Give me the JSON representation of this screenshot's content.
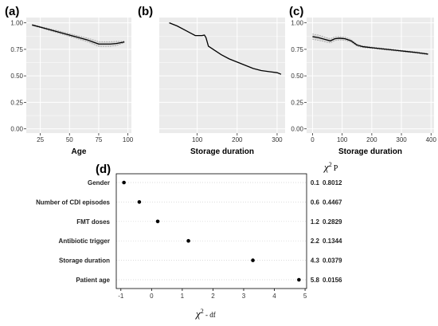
{
  "chart_data": [
    {
      "panel": "(a)",
      "type": "line",
      "xlabel": "Age",
      "ylabel": "",
      "xticks": [
        25,
        50,
        75,
        100
      ],
      "yticks": [
        "0.00",
        "0.25",
        "0.50",
        "0.75",
        "1.00"
      ],
      "xlim": [
        13,
        103
      ],
      "ylim": [
        -0.04,
        1.05
      ],
      "grid": true,
      "x": [
        18,
        25,
        30,
        35,
        40,
        45,
        50,
        55,
        60,
        65,
        70,
        75,
        80,
        85,
        90,
        95,
        97
      ],
      "y": [
        0.98,
        0.96,
        0.945,
        0.93,
        0.915,
        0.9,
        0.885,
        0.87,
        0.855,
        0.84,
        0.82,
        0.8,
        0.8,
        0.8,
        0.805,
        0.815,
        0.82
      ],
      "ci_half_width": [
        0.005,
        0.006,
        0.008,
        0.01,
        0.011,
        0.012,
        0.013,
        0.014,
        0.016,
        0.018,
        0.02,
        0.022,
        0.022,
        0.022,
        0.02,
        0.01,
        0.008
      ]
    },
    {
      "panel": "(b)",
      "type": "line",
      "xlabel": "Storage duration",
      "ylabel": "",
      "xticks": [
        100,
        200,
        300
      ],
      "yticks": [],
      "xlim": [
        5,
        320
      ],
      "ylim": [
        -0.04,
        1.05
      ],
      "grid": true,
      "x": [
        30,
        50,
        70,
        85,
        95,
        105,
        112,
        118,
        122,
        128,
        140,
        160,
        180,
        200,
        220,
        240,
        260,
        280,
        300,
        310
      ],
      "y": [
        1.0,
        0.97,
        0.93,
        0.9,
        0.88,
        0.88,
        0.88,
        0.885,
        0.86,
        0.78,
        0.75,
        0.7,
        0.66,
        0.63,
        0.6,
        0.57,
        0.55,
        0.54,
        0.53,
        0.515
      ],
      "ci_half_width": []
    },
    {
      "panel": "(c)",
      "type": "line",
      "xlabel": "Storage duration",
      "ylabel": "",
      "xticks": [
        0,
        100,
        200,
        300,
        400
      ],
      "yticks": [
        "0.00",
        "0.25",
        "0.50",
        "0.75",
        "1.00"
      ],
      "xlim": [
        -20,
        410
      ],
      "ylim": [
        -0.04,
        1.05
      ],
      "grid": true,
      "x": [
        0,
        20,
        40,
        60,
        75,
        90,
        110,
        130,
        150,
        170,
        200,
        250,
        300,
        350,
        390
      ],
      "y": [
        0.87,
        0.86,
        0.845,
        0.83,
        0.85,
        0.855,
        0.85,
        0.83,
        0.79,
        0.775,
        0.765,
        0.75,
        0.735,
        0.72,
        0.705
      ],
      "ci_half_width": [
        0.025,
        0.025,
        0.022,
        0.02,
        0.018,
        0.016,
        0.015,
        0.012,
        0.01,
        0.008,
        0.007,
        0.006,
        0.006,
        0.006,
        0.006
      ]
    },
    {
      "panel": "(d)",
      "type": "scatter",
      "xlabel_symbol": "χ",
      "xlabel_sup": "2",
      "xlabel_rest": " - df",
      "xticks": [
        -1,
        0,
        1,
        2,
        3,
        4,
        5
      ],
      "xlim": [
        -1.15,
        5.05
      ],
      "categories": [
        "Gender",
        "Number of CDI episodes",
        "FMT doses",
        "Antibiotic trigger",
        "Storage duration",
        "Patient age"
      ],
      "values": [
        -0.9,
        -0.4,
        0.2,
        1.2,
        3.3,
        4.8
      ],
      "chi2": [
        "0.1",
        "0.6",
        "1.2",
        "2.2",
        "4.3",
        "5.8"
      ],
      "p": [
        "0.8012",
        "0.4467",
        "0.2829",
        "0.1344",
        "0.0379",
        "0.0156"
      ],
      "col_head_symbol": "χ",
      "col_head_sup": "2",
      "col_head_p": "P"
    }
  ],
  "colors": {
    "panel_bg": "#ebebeb",
    "grid": "#ffffff",
    "line": "#000000",
    "ci": "#9a9a9a"
  }
}
